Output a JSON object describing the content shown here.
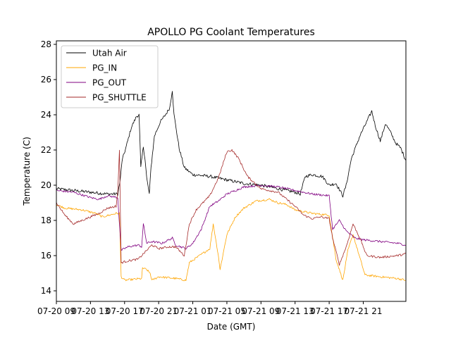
{
  "chart_data": {
    "type": "line",
    "title": "APOLLO PG Coolant Temperatures",
    "xlabel": "Date (GMT)",
    "ylabel": "Temperature (C)",
    "ylim": [
      13.4,
      28.2
    ],
    "xlim": [
      0,
      20.5
    ],
    "y_ticks": [
      14,
      16,
      18,
      20,
      22,
      24,
      26,
      28
    ],
    "x_tick_labels": [
      "07-20 09",
      "07-20 13",
      "07-20 17",
      "07-20 21",
      "07-21 01",
      "07-21 05",
      "07-21 09",
      "07-21 13",
      "07-21 17",
      "07-21 21"
    ],
    "x_tick_positions": [
      0,
      2,
      4,
      6,
      8,
      10,
      12,
      14,
      16,
      18
    ],
    "legend_position": "top-left",
    "series": [
      {
        "name": "Utah Air",
        "color": "#000000",
        "points": [
          [
            0,
            19.8
          ],
          [
            1,
            19.7
          ],
          [
            2,
            19.6
          ],
          [
            3,
            19.5
          ],
          [
            3.6,
            19.5
          ],
          [
            3.75,
            20.3
          ],
          [
            3.85,
            21.4
          ],
          [
            4.1,
            22.2
          ],
          [
            4.4,
            23.3
          ],
          [
            4.7,
            23.9
          ],
          [
            4.85,
            24.0
          ],
          [
            4.95,
            21.0
          ],
          [
            5.1,
            22.2
          ],
          [
            5.2,
            21.5
          ],
          [
            5.3,
            20.4
          ],
          [
            5.45,
            19.5
          ],
          [
            5.55,
            21.0
          ],
          [
            5.75,
            22.8
          ],
          [
            6.1,
            23.6
          ],
          [
            6.4,
            24.0
          ],
          [
            6.65,
            24.4
          ],
          [
            6.8,
            25.4
          ],
          [
            6.9,
            24.0
          ],
          [
            7.2,
            22.1
          ],
          [
            7.5,
            21.0
          ],
          [
            8.0,
            20.6
          ],
          [
            9.0,
            20.5
          ],
          [
            10.0,
            20.3
          ],
          [
            11.0,
            20.1
          ],
          [
            12.0,
            20.0
          ],
          [
            13.0,
            19.8
          ],
          [
            14.0,
            19.6
          ],
          [
            14.3,
            19.5
          ],
          [
            14.6,
            20.5
          ],
          [
            15.0,
            20.6
          ],
          [
            15.6,
            20.5
          ],
          [
            16.0,
            20.0
          ],
          [
            16.4,
            20.1
          ],
          [
            16.8,
            19.4
          ],
          [
            17.0,
            20.0
          ],
          [
            17.3,
            21.5
          ],
          [
            17.8,
            22.8
          ],
          [
            18.2,
            23.6
          ],
          [
            18.5,
            24.2
          ],
          [
            18.7,
            23.4
          ],
          [
            19.0,
            22.5
          ],
          [
            19.3,
            23.5
          ],
          [
            19.6,
            23.0
          ],
          [
            19.9,
            22.4
          ],
          [
            20.2,
            22.1
          ],
          [
            20.5,
            21.4
          ]
        ]
      },
      {
        "name": "PG_IN",
        "color": "#FFA500",
        "points": [
          [
            0,
            18.9
          ],
          [
            0.5,
            18.7
          ],
          [
            1.5,
            18.6
          ],
          [
            2.3,
            18.4
          ],
          [
            2.7,
            18.2
          ],
          [
            3.5,
            18.4
          ],
          [
            3.7,
            18.4
          ],
          [
            3.8,
            14.8
          ],
          [
            4.0,
            14.6
          ],
          [
            5.0,
            14.7
          ],
          [
            5.05,
            15.3
          ],
          [
            5.3,
            15.2
          ],
          [
            5.5,
            15.0
          ],
          [
            5.6,
            14.6
          ],
          [
            6.0,
            14.8
          ],
          [
            7.0,
            14.7
          ],
          [
            7.6,
            14.6
          ],
          [
            7.8,
            15.6
          ],
          [
            8.4,
            16.0
          ],
          [
            9.0,
            16.4
          ],
          [
            9.2,
            17.8
          ],
          [
            9.5,
            16.0
          ],
          [
            9.6,
            15.2
          ],
          [
            10.0,
            17.2
          ],
          [
            10.5,
            18.2
          ],
          [
            11.0,
            18.7
          ],
          [
            11.7,
            19.1
          ],
          [
            12.5,
            19.2
          ],
          [
            13.0,
            19.0
          ],
          [
            13.5,
            18.9
          ],
          [
            14.0,
            18.6
          ],
          [
            15.0,
            18.4
          ],
          [
            16.0,
            18.3
          ],
          [
            16.4,
            15.8
          ],
          [
            16.8,
            14.6
          ],
          [
            17.1,
            16.3
          ],
          [
            17.4,
            17.2
          ],
          [
            17.7,
            16.2
          ],
          [
            18.1,
            14.9
          ],
          [
            19.0,
            14.8
          ],
          [
            20.0,
            14.7
          ],
          [
            20.5,
            14.6
          ]
        ]
      },
      {
        "name": "PG_OUT",
        "color": "#800080",
        "points": [
          [
            0,
            19.7
          ],
          [
            1,
            19.6
          ],
          [
            2,
            19.3
          ],
          [
            2.5,
            19.2
          ],
          [
            3.0,
            19.4
          ],
          [
            3.6,
            19.3
          ],
          [
            3.8,
            16.3
          ],
          [
            4.2,
            16.5
          ],
          [
            4.8,
            16.6
          ],
          [
            5.0,
            16.5
          ],
          [
            5.1,
            17.8
          ],
          [
            5.3,
            16.7
          ],
          [
            5.6,
            16.8
          ],
          [
            6.2,
            16.7
          ],
          [
            6.8,
            17.0
          ],
          [
            7.0,
            16.6
          ],
          [
            7.6,
            16.4
          ],
          [
            8.0,
            16.7
          ],
          [
            8.5,
            17.5
          ],
          [
            9.0,
            18.8
          ],
          [
            9.5,
            19.1
          ],
          [
            10.0,
            19.5
          ],
          [
            11.0,
            19.9
          ],
          [
            12.0,
            20.0
          ],
          [
            13.0,
            19.9
          ],
          [
            14.0,
            19.7
          ],
          [
            15.0,
            19.5
          ],
          [
            16.0,
            19.4
          ],
          [
            16.2,
            17.5
          ],
          [
            16.6,
            18.0
          ],
          [
            17.0,
            17.4
          ],
          [
            17.5,
            17.0
          ],
          [
            18.0,
            16.9
          ],
          [
            19.0,
            16.8
          ],
          [
            20.0,
            16.7
          ],
          [
            20.5,
            16.6
          ]
        ]
      },
      {
        "name": "PG_SHUTTLE",
        "color": "#A52A2A",
        "points": [
          [
            0,
            19.0
          ],
          [
            0.5,
            18.3
          ],
          [
            1.0,
            17.8
          ],
          [
            1.5,
            18.0
          ],
          [
            2.0,
            18.2
          ],
          [
            2.5,
            18.4
          ],
          [
            3.0,
            18.7
          ],
          [
            3.5,
            18.8
          ],
          [
            3.6,
            19.6
          ],
          [
            3.7,
            22.0
          ],
          [
            3.8,
            15.6
          ],
          [
            4.2,
            15.7
          ],
          [
            4.8,
            15.8
          ],
          [
            5.0,
            16.0
          ],
          [
            5.3,
            16.3
          ],
          [
            5.6,
            16.6
          ],
          [
            6.0,
            16.4
          ],
          [
            6.6,
            16.5
          ],
          [
            7.0,
            16.5
          ],
          [
            7.5,
            16.0
          ],
          [
            7.8,
            17.8
          ],
          [
            8.2,
            18.6
          ],
          [
            8.6,
            19.0
          ],
          [
            9.0,
            19.4
          ],
          [
            9.5,
            20.4
          ],
          [
            10.0,
            21.9
          ],
          [
            10.3,
            22.0
          ],
          [
            10.7,
            21.5
          ],
          [
            11.2,
            20.5
          ],
          [
            12.0,
            19.8
          ],
          [
            13.0,
            19.6
          ],
          [
            13.5,
            19.2
          ],
          [
            14.0,
            18.8
          ],
          [
            14.5,
            18.3
          ],
          [
            15.0,
            18.1
          ],
          [
            15.5,
            18.2
          ],
          [
            16.0,
            18.1
          ],
          [
            16.2,
            17.0
          ],
          [
            16.6,
            15.5
          ],
          [
            17.0,
            16.5
          ],
          [
            17.4,
            17.8
          ],
          [
            17.8,
            17.0
          ],
          [
            18.2,
            16.0
          ],
          [
            19.0,
            15.9
          ],
          [
            20.0,
            16.0
          ],
          [
            20.5,
            16.1
          ]
        ]
      }
    ]
  }
}
